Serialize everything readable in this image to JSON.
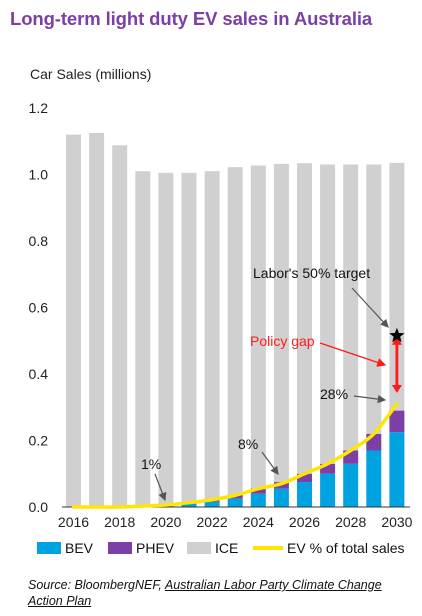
{
  "title": "Long-term light duty EV sales in Australia",
  "source": {
    "prefix": "Source: BloombergNEF, ",
    "link_text": "Australian Labor Party Climate Change Action Plan"
  },
  "chart_data": {
    "type": "bar",
    "stacked": true,
    "title": "Long-term light duty EV sales in Australia",
    "ylabel": "Car Sales (millions)",
    "xlabel": "",
    "ylim": [
      0,
      1.2
    ],
    "yticks": [
      0.0,
      0.2,
      0.4,
      0.6,
      0.8,
      1.0,
      1.2
    ],
    "ytick_labels": [
      "0.0",
      "0.2",
      "0.4",
      "0.6",
      "0.8",
      "1.0",
      "1.2"
    ],
    "categories": [
      "2016",
      "2017",
      "2018",
      "2019",
      "2020",
      "2021",
      "2022",
      "2023",
      "2024",
      "2025",
      "2026",
      "2027",
      "2028",
      "2029",
      "2030"
    ],
    "xtick_labels": [
      "2016",
      "2018",
      "2020",
      "2022",
      "2024",
      "2026",
      "2028",
      "2030"
    ],
    "grid": false,
    "legend_position": "bottom",
    "series": [
      {
        "name": "BEV",
        "color": "#00a3e0",
        "values": [
          0.001,
          0.001,
          0.002,
          0.003,
          0.005,
          0.01,
          0.016,
          0.025,
          0.04,
          0.055,
          0.075,
          0.1,
          0.13,
          0.17,
          0.225
        ]
      },
      {
        "name": "PHEV",
        "color": "#7b3fa6",
        "values": [
          0.001,
          0.001,
          0.002,
          0.002,
          0.003,
          0.005,
          0.008,
          0.012,
          0.016,
          0.02,
          0.025,
          0.03,
          0.04,
          0.05,
          0.065
        ]
      },
      {
        "name": "ICE",
        "color": "#d0d0d0",
        "values": [
          1.118,
          1.123,
          1.084,
          1.005,
          0.997,
          0.99,
          0.986,
          0.985,
          0.971,
          0.957,
          0.934,
          0.9,
          0.86,
          0.81,
          0.745
        ]
      }
    ],
    "line_series": {
      "name": "EV % of total sales",
      "color": "#ffe600",
      "values": [
        0.0,
        0.0,
        0.0,
        0.003,
        0.006,
        0.013,
        0.022,
        0.035,
        0.055,
        0.07,
        0.1,
        0.13,
        0.17,
        0.22,
        0.31
      ]
    },
    "annotations": [
      {
        "text": "1%",
        "color": "#111111"
      },
      {
        "text": "8%",
        "color": "#111111"
      },
      {
        "text": "28%",
        "color": "#111111"
      },
      {
        "text": "Labor's 50% target",
        "color": "#111111"
      },
      {
        "text": "Policy gap",
        "color": "#ff1a1a"
      }
    ],
    "target_value": 0.515,
    "gap_bottom_value": 0.34
  }
}
